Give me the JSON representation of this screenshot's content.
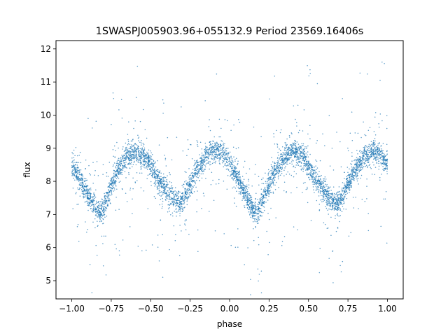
{
  "chart_data": {
    "type": "scatter",
    "title": "1SWASPJ005903.96+055132.9 Period 23569.16406s",
    "xlabel": "phase",
    "ylabel": "flux",
    "xlim": [
      -1.1,
      1.1
    ],
    "ylim": [
      4.45,
      12.25
    ],
    "xticks": [
      -1.0,
      -0.75,
      -0.5,
      -0.25,
      0.0,
      0.25,
      0.5,
      0.75,
      1.0
    ],
    "xtick_labels": [
      "−1.00",
      "−0.75",
      "−0.50",
      "−0.25",
      "0.00",
      "0.25",
      "0.50",
      "0.75",
      "1.00"
    ],
    "yticks": [
      5,
      6,
      7,
      8,
      9,
      10,
      11,
      12
    ],
    "ytick_labels": [
      "5",
      "6",
      "7",
      "8",
      "9",
      "10",
      "11",
      "12"
    ],
    "grid": false,
    "point_color": "#1f77b4",
    "series": [
      {
        "x": [
          -1.0,
          -0.95,
          -0.9,
          -0.85,
          -0.82,
          -0.78,
          -0.75,
          -0.7,
          -0.65,
          -0.6,
          -0.55,
          -0.5,
          -0.45,
          -0.4,
          -0.35,
          -0.32,
          -0.3,
          -0.25,
          -0.2,
          -0.15,
          -0.1,
          -0.05,
          0.0,
          0.05,
          0.1,
          0.15,
          0.18,
          0.2,
          0.25,
          0.3,
          0.35,
          0.4,
          0.45,
          0.5,
          0.55,
          0.6,
          0.65,
          0.68,
          0.7,
          0.75,
          0.8,
          0.85,
          0.9,
          0.95,
          1.0
        ],
        "y": [
          8.5,
          8.1,
          7.6,
          7.2,
          7.05,
          7.4,
          7.9,
          8.4,
          8.75,
          8.9,
          8.8,
          8.5,
          8.0,
          7.7,
          7.4,
          7.3,
          7.45,
          7.9,
          8.4,
          8.75,
          8.95,
          8.85,
          8.55,
          8.1,
          7.6,
          7.15,
          7.05,
          7.3,
          7.9,
          8.4,
          8.75,
          8.9,
          8.8,
          8.5,
          8.0,
          7.7,
          7.4,
          7.3,
          7.45,
          7.9,
          8.4,
          8.75,
          8.9,
          8.85,
          8.5
        ]
      }
    ]
  }
}
